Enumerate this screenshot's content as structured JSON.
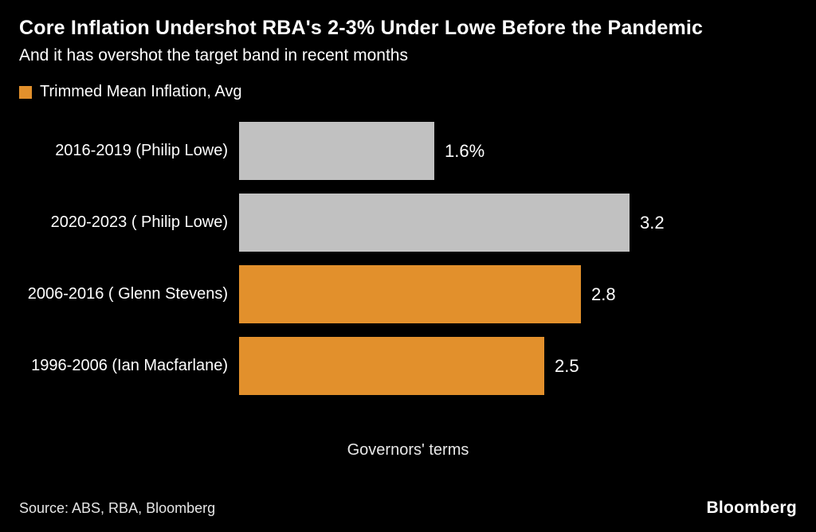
{
  "chart_data": {
    "type": "bar",
    "orientation": "horizontal",
    "title": "Core Inflation Undershot RBA's 2-3% Under Lowe Before the Pandemic",
    "subtitle": "And it has overshot the target band in recent months",
    "legend": {
      "label": "Trimmed Mean Inflation, Avg",
      "swatch_color": "#e2902c",
      "position": "top-left"
    },
    "categories": [
      "2016-2019 (Philip Lowe)",
      "2020-2023 ( Philip Lowe)",
      "2006-2016 ( Glenn Stevens)",
      "1996-2006 (Ian Macfarlane)"
    ],
    "values": [
      1.6,
      3.2,
      2.8,
      2.5
    ],
    "value_labels": [
      "1.6%",
      "3.2",
      "2.8",
      "2.5"
    ],
    "bar_colors": [
      "#c1c1c1",
      "#c1c1c1",
      "#e2902c",
      "#e2902c"
    ],
    "xlabel": "Governors' terms",
    "ylabel": "",
    "xlim": [
      0,
      3.2
    ],
    "grid": false,
    "colors": {
      "background": "#000000",
      "text": "#ffffff",
      "gray_bar": "#c1c1c1",
      "orange_bar": "#e2902c"
    }
  },
  "footer": {
    "source": "Source: ABS, RBA, Bloomberg",
    "brand": "Bloomberg"
  }
}
